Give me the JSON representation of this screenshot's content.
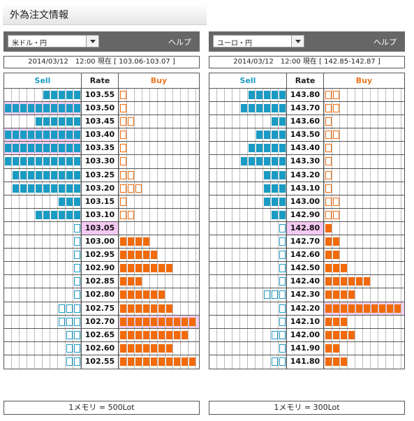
{
  "page_title": "外為注文情報",
  "panels": [
    {
      "pair": "米ドル・円",
      "help": "ヘルプ",
      "info": "2014/03/12　12:00 現在 [ 103.06-103.07 ]",
      "headers": {
        "sell": "Sell",
        "rate": "Rate",
        "buy": "Buy"
      },
      "footer": "1メモリ = 500Lot",
      "colors": {
        "sell": "#1a9bc4",
        "buy": "#f26a0a",
        "current_rate_bg": "#f4c9f4",
        "highlight_bg": "#f3d2f3"
      },
      "rows": [
        {
          "rate": "103.55",
          "sell": 5,
          "sell_outline": 0,
          "buy": 0,
          "buy_outline": 1
        },
        {
          "rate": "103.50",
          "sell": 10,
          "sell_outline": 0,
          "buy": 0,
          "buy_outline": 1,
          "highlight": "sell"
        },
        {
          "rate": "103.45",
          "sell": 6,
          "sell_outline": 0,
          "buy": 0,
          "buy_outline": 2
        },
        {
          "rate": "103.40",
          "sell": 10,
          "sell_outline": 0,
          "buy": 0,
          "buy_outline": 1,
          "highlight": "sell"
        },
        {
          "rate": "103.35",
          "sell": 10,
          "sell_outline": 0,
          "buy": 0,
          "buy_outline": 1,
          "highlight": "sell"
        },
        {
          "rate": "103.30",
          "sell": 10,
          "sell_outline": 0,
          "buy": 0,
          "buy_outline": 1
        },
        {
          "rate": "103.25",
          "sell": 9,
          "sell_outline": 0,
          "buy": 0,
          "buy_outline": 2
        },
        {
          "rate": "103.20",
          "sell": 9,
          "sell_outline": 0,
          "buy": 0,
          "buy_outline": 3
        },
        {
          "rate": "103.15",
          "sell": 3,
          "sell_outline": 0,
          "buy": 0,
          "buy_outline": 1
        },
        {
          "rate": "103.10",
          "sell": 6,
          "sell_outline": 0,
          "buy": 0,
          "buy_outline": 2
        },
        {
          "rate": "103.05",
          "sell": 0,
          "sell_outline": 1,
          "buy": 0,
          "buy_outline": 0,
          "current": true
        },
        {
          "rate": "103.00",
          "sell": 0,
          "sell_outline": 1,
          "buy": 4,
          "buy_outline": 0
        },
        {
          "rate": "102.95",
          "sell": 0,
          "sell_outline": 1,
          "buy": 5,
          "buy_outline": 0
        },
        {
          "rate": "102.90",
          "sell": 0,
          "sell_outline": 1,
          "buy": 7,
          "buy_outline": 0
        },
        {
          "rate": "102.85",
          "sell": 0,
          "sell_outline": 1,
          "buy": 3,
          "buy_outline": 0
        },
        {
          "rate": "102.80",
          "sell": 0,
          "sell_outline": 1,
          "buy": 6,
          "buy_outline": 0
        },
        {
          "rate": "102.75",
          "sell": 0,
          "sell_outline": 3,
          "buy": 7,
          "buy_outline": 0
        },
        {
          "rate": "102.70",
          "sell": 0,
          "sell_outline": 3,
          "buy": 10,
          "buy_outline": 0,
          "highlight": "buy"
        },
        {
          "rate": "102.65",
          "sell": 0,
          "sell_outline": 2,
          "buy": 9,
          "buy_outline": 0
        },
        {
          "rate": "102.60",
          "sell": 0,
          "sell_outline": 2,
          "buy": 7,
          "buy_outline": 0
        },
        {
          "rate": "102.55",
          "sell": 0,
          "sell_outline": 2,
          "buy": 10,
          "buy_outline": 0
        }
      ]
    },
    {
      "pair": "ユーロ・円",
      "help": "ヘルプ",
      "info": "2014/03/12　12:00 現在 [ 142.85-142.87 ]",
      "headers": {
        "sell": "Sell",
        "rate": "Rate",
        "buy": "Buy"
      },
      "footer": "1メモリ = 300Lot",
      "colors": {
        "sell": "#1a9bc4",
        "buy": "#f26a0a",
        "current_rate_bg": "#f4c9f4",
        "highlight_bg": "#f3d2f3"
      },
      "rows": [
        {
          "rate": "143.80",
          "sell": 5,
          "sell_outline": 0,
          "buy": 0,
          "buy_outline": 2
        },
        {
          "rate": "143.70",
          "sell": 6,
          "sell_outline": 0,
          "buy": 0,
          "buy_outline": 2
        },
        {
          "rate": "143.60",
          "sell": 2,
          "sell_outline": 0,
          "buy": 0,
          "buy_outline": 1
        },
        {
          "rate": "143.50",
          "sell": 4,
          "sell_outline": 0,
          "buy": 0,
          "buy_outline": 2
        },
        {
          "rate": "143.40",
          "sell": 5,
          "sell_outline": 0,
          "buy": 0,
          "buy_outline": 1
        },
        {
          "rate": "143.30",
          "sell": 6,
          "sell_outline": 0,
          "buy": 0,
          "buy_outline": 1
        },
        {
          "rate": "143.20",
          "sell": 3,
          "sell_outline": 0,
          "buy": 0,
          "buy_outline": 1
        },
        {
          "rate": "143.10",
          "sell": 3,
          "sell_outline": 0,
          "buy": 0,
          "buy_outline": 1
        },
        {
          "rate": "143.00",
          "sell": 3,
          "sell_outline": 0,
          "buy": 0,
          "buy_outline": 2
        },
        {
          "rate": "142.90",
          "sell": 2,
          "sell_outline": 0,
          "buy": 0,
          "buy_outline": 2
        },
        {
          "rate": "142.80",
          "sell": 0,
          "sell_outline": 1,
          "buy": 1,
          "buy_outline": 0,
          "current": true
        },
        {
          "rate": "142.70",
          "sell": 0,
          "sell_outline": 1,
          "buy": 2,
          "buy_outline": 0
        },
        {
          "rate": "142.60",
          "sell": 0,
          "sell_outline": 1,
          "buy": 2,
          "buy_outline": 0
        },
        {
          "rate": "142.50",
          "sell": 0,
          "sell_outline": 1,
          "buy": 3,
          "buy_outline": 0
        },
        {
          "rate": "142.40",
          "sell": 0,
          "sell_outline": 1,
          "buy": 6,
          "buy_outline": 0
        },
        {
          "rate": "142.30",
          "sell": 0,
          "sell_outline": 3,
          "buy": 4,
          "buy_outline": 0
        },
        {
          "rate": "142.20",
          "sell": 0,
          "sell_outline": 1,
          "buy": 10,
          "buy_outline": 0,
          "highlight": "buy"
        },
        {
          "rate": "142.10",
          "sell": 0,
          "sell_outline": 1,
          "buy": 3,
          "buy_outline": 0
        },
        {
          "rate": "142.00",
          "sell": 0,
          "sell_outline": 2,
          "buy": 4,
          "buy_outline": 0
        },
        {
          "rate": "141.90",
          "sell": 0,
          "sell_outline": 1,
          "buy": 2,
          "buy_outline": 0
        },
        {
          "rate": "141.80",
          "sell": 0,
          "sell_outline": 2,
          "buy": 3,
          "buy_outline": 0
        }
      ]
    }
  ]
}
